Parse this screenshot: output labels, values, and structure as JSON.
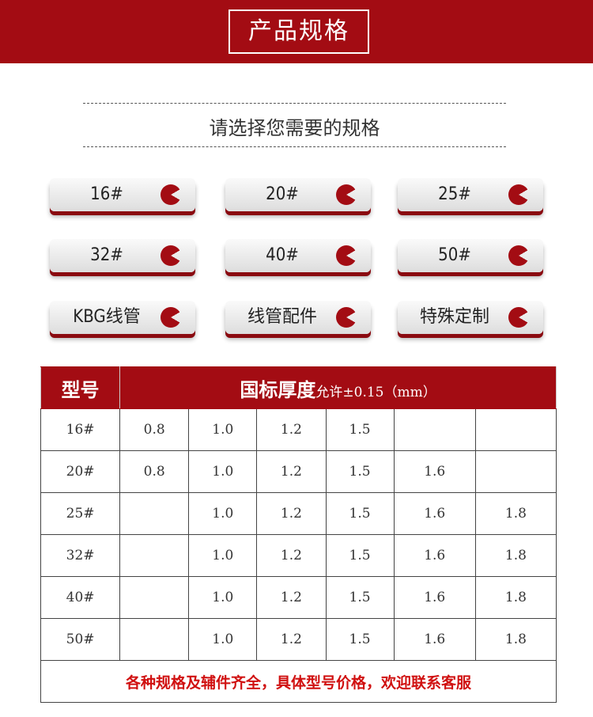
{
  "banner": {
    "title": "产品规格"
  },
  "subtitle": "请选择您需要的规格",
  "buttons": [
    {
      "label": "16#"
    },
    {
      "label": "20#"
    },
    {
      "label": "25#"
    },
    {
      "label": "32#"
    },
    {
      "label": "40#"
    },
    {
      "label": "50#"
    },
    {
      "label": "KBG线管"
    },
    {
      "label": "线管配件"
    },
    {
      "label": "特殊定制"
    }
  ],
  "colors": {
    "accent": "#a30c13"
  },
  "table": {
    "header_model": "型号",
    "header_thickness": "国标厚度",
    "header_tolerance": "允许±0.15（mm）",
    "rows": [
      [
        "16#",
        "0.8",
        "1.0",
        "1.2",
        "1.5",
        "",
        ""
      ],
      [
        "20#",
        "0.8",
        "1.0",
        "1.2",
        "1.5",
        "1.6",
        ""
      ],
      [
        "25#",
        "",
        "1.0",
        "1.2",
        "1.5",
        "1.6",
        "1.8"
      ],
      [
        "32#",
        "",
        "1.0",
        "1.2",
        "1.5",
        "1.6",
        "1.8"
      ],
      [
        "40#",
        "",
        "1.0",
        "1.2",
        "1.5",
        "1.6",
        "1.8"
      ],
      [
        "50#",
        "",
        "1.0",
        "1.2",
        "1.5",
        "1.6",
        "1.8"
      ]
    ],
    "footer": "各种规格及辅件齐全，具体型号价格，欢迎联系客服"
  }
}
